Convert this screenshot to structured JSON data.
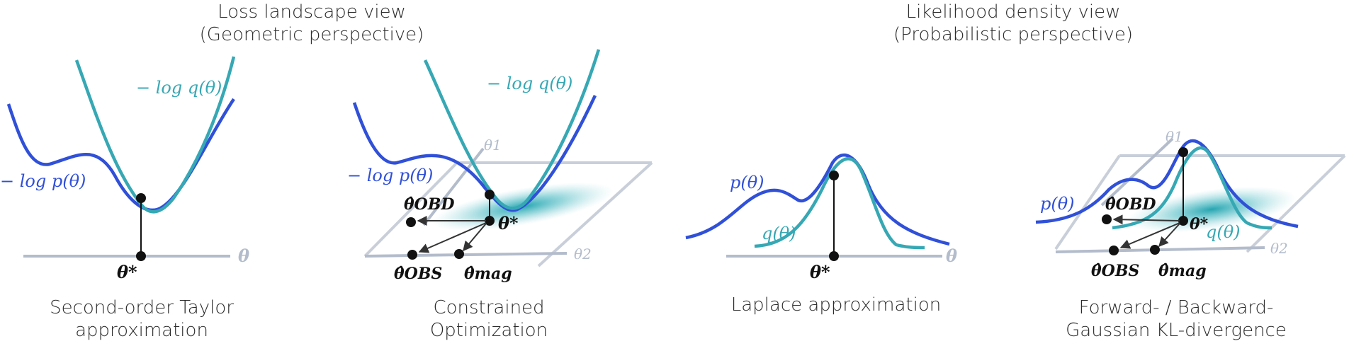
{
  "headers": {
    "geometric": [
      "Loss landscape view",
      "(Geometric perspective)"
    ],
    "probabilistic": [
      "Likelihood density view",
      "(Probabilistic perspective)"
    ]
  },
  "captions": {
    "taylor": [
      "Second-order Taylor",
      "approximation"
    ],
    "constrained": [
      "Constrained",
      "Optimization"
    ],
    "laplace": [
      "Laplace approximation"
    ],
    "kl": [
      "Forward- / Backward-",
      "Gaussian KL-divergence"
    ]
  },
  "labels": {
    "neg_log_q": "− log q(θ)",
    "neg_log_p": "− log p(θ)",
    "p_theta": "p(θ)",
    "q_theta": "q(θ)",
    "theta": "θ",
    "theta_star": "θ*",
    "theta1": "θ1",
    "theta2": "θ2",
    "theta_obd": "θ̂OBD",
    "theta_obs": "θ̂OBS",
    "theta_mag": "θ̂mag"
  },
  "colors": {
    "p_curve": "#3050d8",
    "q_curve": "#36a8b4",
    "axis": "#b3bccb",
    "plane": "#c9cfd9",
    "point": "#111111"
  }
}
